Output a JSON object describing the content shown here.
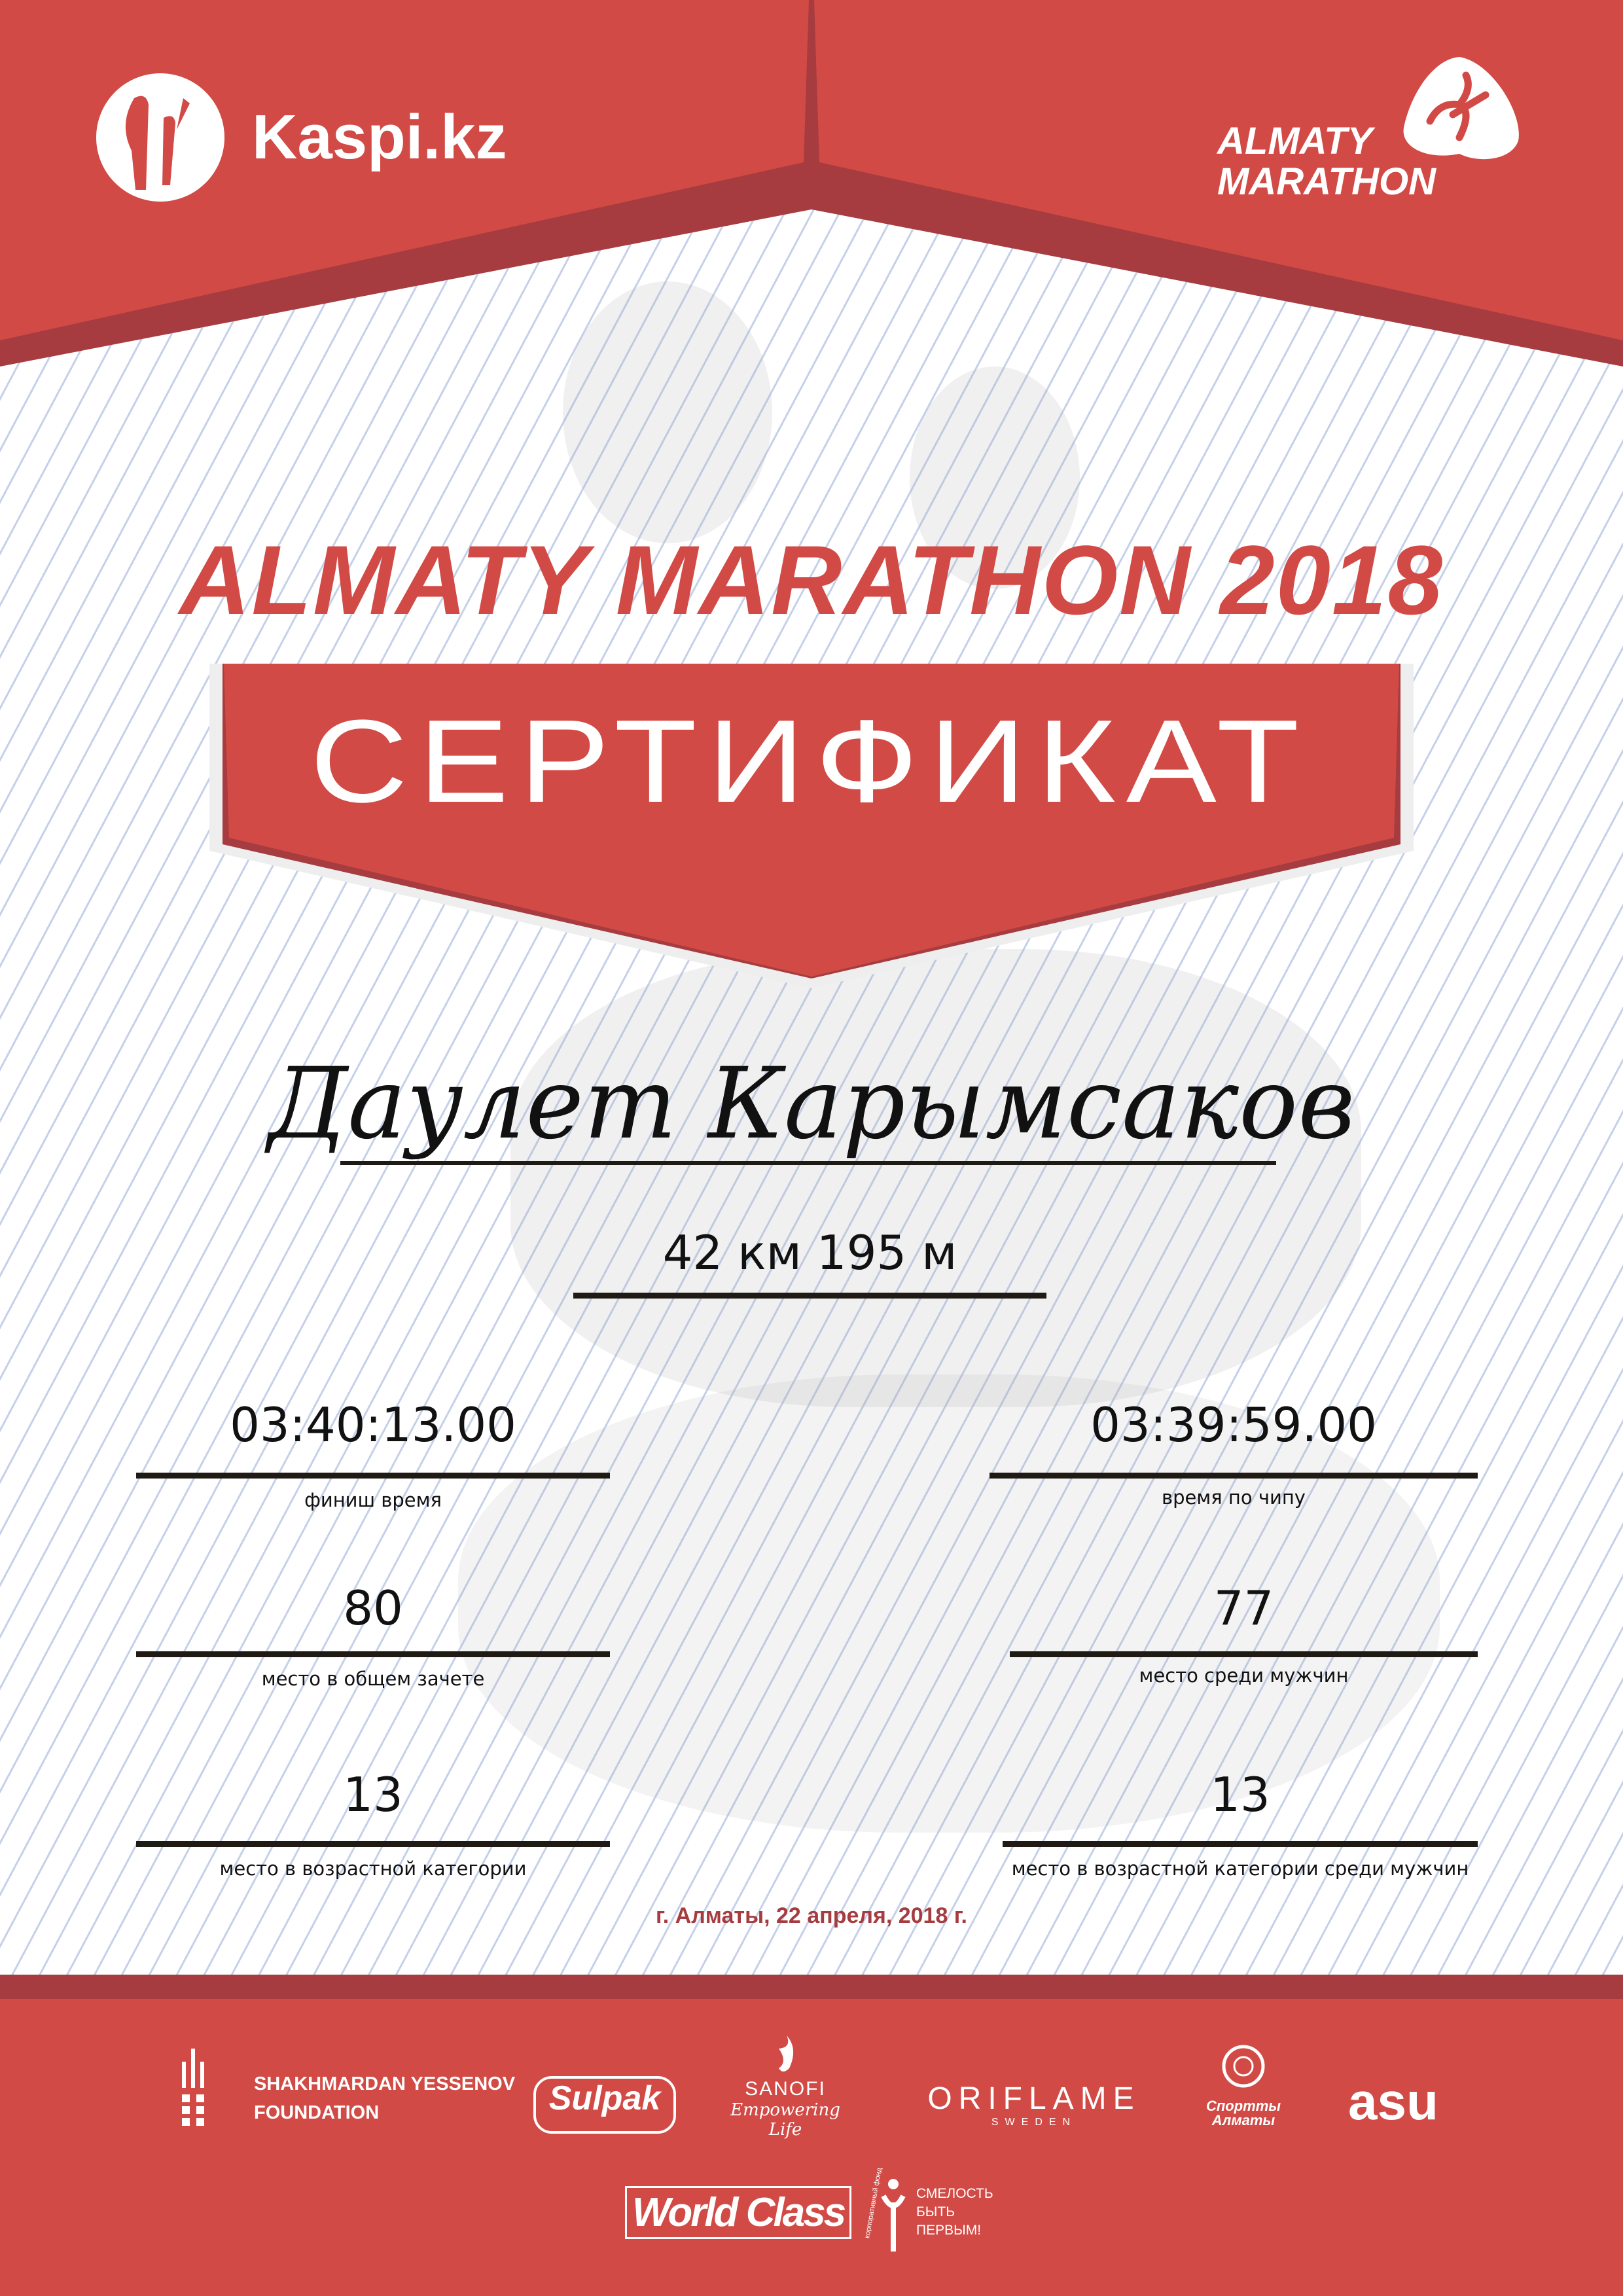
{
  "colors": {
    "accent": "#d24a45",
    "accent_dark": "#a63c3f",
    "text": "#111111"
  },
  "header": {
    "left_logo": {
      "icon": "kaspi-logo-icon",
      "text": "Kaspi.kz"
    },
    "right_logo": {
      "icon": "runner-logo-icon",
      "line1": "ALMATY",
      "line2": "MARATHON"
    }
  },
  "title": "ALMATY MARATHON 2018",
  "certificate_label": "СЕРТИФИКАТ",
  "participant_name": "Даулет Карымсаков",
  "distance": "42 км 195 м",
  "results": [
    {
      "value": "03:40:13.00",
      "label": "финиш время"
    },
    {
      "value": "03:39:59.00",
      "label": "время по чипу"
    },
    {
      "value": "80",
      "label": "место в общем зачете"
    },
    {
      "value": "77",
      "label": "место среди мужчин"
    },
    {
      "value": "13",
      "label": "место в возрастной категории"
    },
    {
      "value": "13",
      "label": "место в возрастной категории среди мужчин"
    }
  ],
  "date_line": "г. Алматы, 22 апреля, 2018 г.",
  "sponsors": {
    "yessenov": {
      "line1": "SHAKHMARDAN YESSENOV",
      "line2": "FOUNDATION"
    },
    "sulpak": "Sulpak",
    "sanofi": {
      "name": "SANOFI",
      "tagline": "Empowering Life"
    },
    "oriflame": {
      "name": "ORIFLAME",
      "sub": "SWEDEN"
    },
    "sport_almaty": {
      "line1": "Спортты",
      "line2": "Алматы"
    },
    "asu": "asu",
    "world_class": "World Class",
    "fund": {
      "arc": "корпоративный фонд",
      "line1": "СМЕЛОСТЬ",
      "line2": "БЫТЬ",
      "line3": "ПЕРВЫМ!"
    }
  }
}
